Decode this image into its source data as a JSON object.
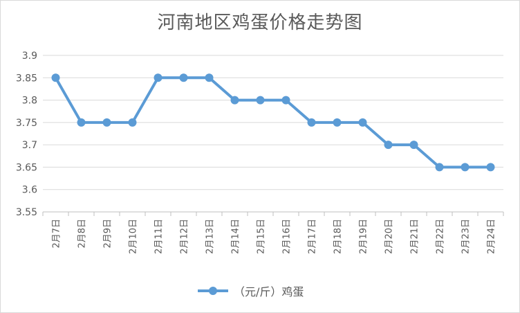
{
  "chart_data": {
    "type": "line",
    "title": "河南地区鸡蛋价格走势图",
    "categories": [
      "2月7日",
      "2月8日",
      "2月9日",
      "2月10日",
      "2月11日",
      "2月12日",
      "2月13日",
      "2月14日",
      "2月15日",
      "2月16日",
      "2月17日",
      "2月18日",
      "2月19日",
      "2月20日",
      "2月21日",
      "2月22日",
      "2月23日",
      "2月24日"
    ],
    "series": [
      {
        "name": "（元/斤）鸡蛋",
        "values": [
          3.85,
          3.75,
          3.75,
          3.75,
          3.85,
          3.85,
          3.85,
          3.8,
          3.8,
          3.8,
          3.75,
          3.75,
          3.75,
          3.7,
          3.7,
          3.65,
          3.65,
          3.65
        ]
      }
    ],
    "ylim": [
      3.55,
      3.9
    ],
    "yticks": [
      "3.9",
      "3.85",
      "3.8",
      "3.75",
      "3.7",
      "3.65",
      "3.6",
      "3.55"
    ],
    "xlabel": "",
    "ylabel": "",
    "grid": true,
    "legend": "bottom",
    "color": "#5b9bd5"
  }
}
